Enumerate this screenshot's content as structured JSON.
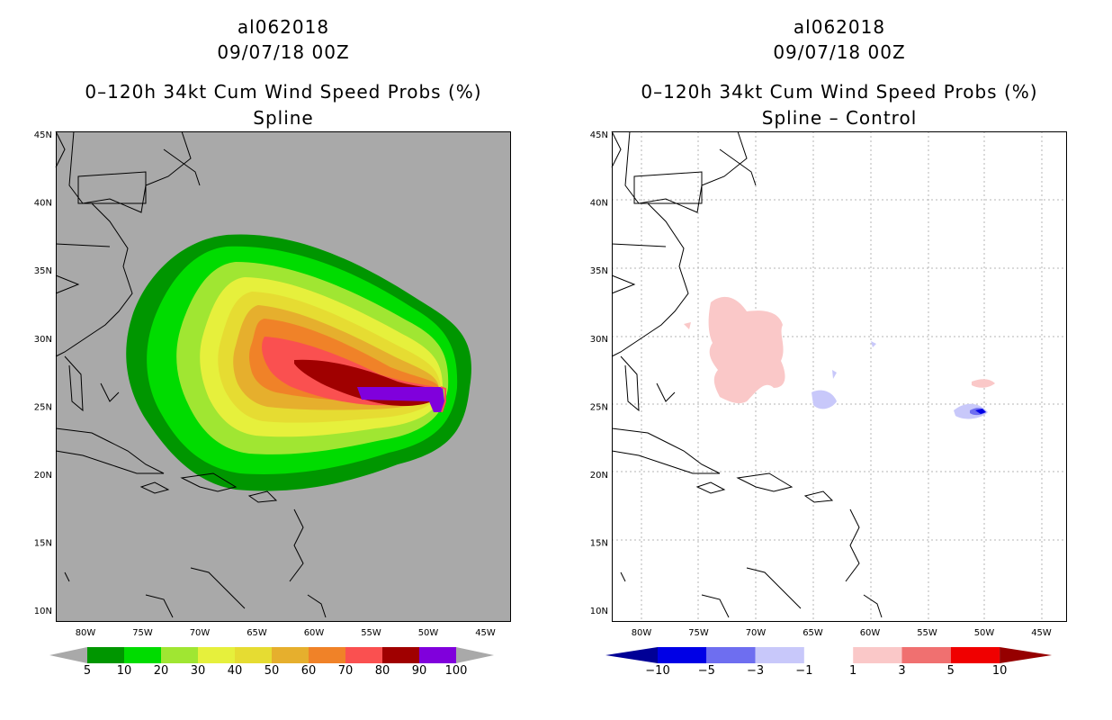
{
  "left_panel": {
    "storm": "al062018",
    "date": "09/07/18 00Z",
    "product": "0–120h 34kt Cum Wind Speed Probs (%)",
    "subtitle": "Spline",
    "colorbar": {
      "labels": [
        "5",
        "10",
        "20",
        "30",
        "40",
        "50",
        "60",
        "70",
        "80",
        "90",
        "100"
      ],
      "colors": [
        "#009600",
        "#00dc00",
        "#a0e632",
        "#e6f03c",
        "#e6dc32",
        "#e6af2d",
        "#f08228",
        "#fa5050",
        "#a00000",
        "#8000dc"
      ]
    }
  },
  "right_panel": {
    "storm": "al062018",
    "date": "09/07/18 00Z",
    "product": "0–120h 34kt Cum Wind Speed Probs (%)",
    "subtitle": "Spline – Control",
    "colorbar": {
      "labels": [
        "−10",
        "−5",
        "−3",
        "−1",
        "1",
        "3",
        "5",
        "10"
      ],
      "colors": [
        "#000096",
        "#0000e6",
        "#6e6ef0",
        "#c8c8fa",
        "#ffffff",
        "#fac8c8",
        "#f07070",
        "#f00000",
        "#960000"
      ]
    }
  },
  "axes": {
    "lat_labels": [
      "45N",
      "40N",
      "35N",
      "30N",
      "25N",
      "20N",
      "15N",
      "10N"
    ],
    "lon_labels": [
      "80W",
      "75W",
      "70W",
      "65W",
      "60W",
      "55W",
      "50W",
      "45W"
    ]
  },
  "colors": {
    "ocean_left": "#a9a9a9",
    "ocean_right": "#ffffff",
    "land_outline": "#000000",
    "grid": "#b4b4b4"
  }
}
